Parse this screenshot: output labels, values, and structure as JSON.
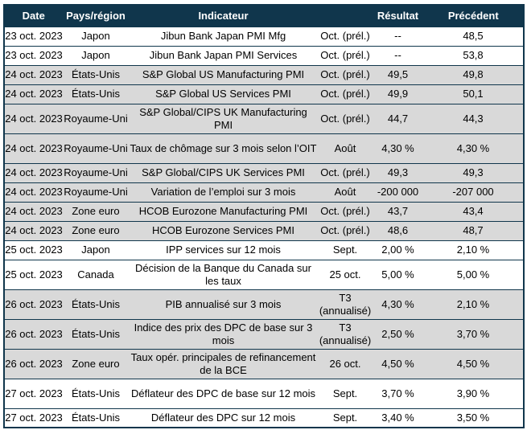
{
  "chart_data": {
    "type": "table",
    "columns": [
      "Date",
      "Pays/région",
      "Indicateur",
      "",
      "Résultat",
      "Précédent"
    ],
    "rows": [
      [
        "23 oct. 2023",
        "Japon",
        "Jibun Bank Japan PMI Mfg",
        "Oct. (prél.)",
        "--",
        "48,5"
      ],
      [
        "23 oct. 2023",
        "Japon",
        "Jibun Bank Japan PMI Services",
        "Oct. (prél.)",
        "--",
        "53,8"
      ],
      [
        "24 oct. 2023",
        "États-Unis",
        "S&P Global US Manufacturing PMI",
        "Oct. (prél.)",
        "49,5",
        "49,8"
      ],
      [
        "24 oct. 2023",
        "États-Unis",
        "S&P Global US Services PMI",
        "Oct. (prél.)",
        "49,9",
        "50,1"
      ],
      [
        "24 oct. 2023",
        "Royaume-Uni",
        "S&P Global/CIPS UK Manufacturing PMI",
        "Oct. (prél.)",
        "44,7",
        "44,3"
      ],
      [
        "24 oct. 2023",
        "Royaume-Uni",
        "Taux de chômage sur 3 mois selon l’OIT",
        "Août",
        "4,30 %",
        "4,30 %"
      ],
      [
        "24 oct. 2023",
        "Royaume-Uni",
        "S&P Global/CIPS UK Services PMI",
        "Oct. (prél.)",
        "49,3",
        "49,3"
      ],
      [
        "24 oct. 2023",
        "Royaume-Uni",
        "Variation de l’emploi sur 3 mois",
        "Août",
        "-200 000",
        "-207 000"
      ],
      [
        "24 oct. 2023",
        "Zone euro",
        "HCOB Eurozone Manufacturing PMI",
        "Oct. (prél.)",
        "43,7",
        "43,4"
      ],
      [
        "24 oct. 2023",
        "Zone euro",
        "HCOB Eurozone Services PMI",
        "Oct. (prél.)",
        "48,6",
        "48,7"
      ],
      [
        "25 oct. 2023",
        "Japon",
        "IPP services sur 12 mois",
        "Sept.",
        "2,00 %",
        "2,10 %"
      ],
      [
        "25 oct. 2023",
        "Canada",
        "Décision de la Banque du Canada sur les taux",
        "25 oct.",
        "5,00 %",
        "5,00 %"
      ],
      [
        "26 oct. 2023",
        "États-Unis",
        "PIB annualisé sur 3 mois",
        "T3 (annualisé)",
        "4,30 %",
        "2,10 %"
      ],
      [
        "26 oct. 2023",
        "États-Unis",
        "Indice des prix des DPC de base sur 3 mois",
        "T3 (annualisé)",
        "2,50 %",
        "3,70 %"
      ],
      [
        "26 oct. 2023",
        "Zone euro",
        "Taux opér. principales de refinancement de la BCE",
        "26 oct.",
        "4,50 %",
        "4,50 %"
      ],
      [
        "27 oct. 2023",
        "États-Unis",
        "Déflateur des DPC de base sur 12 mois",
        "Sept.",
        "3,70 %",
        "3,90 %"
      ],
      [
        "27 oct. 2023",
        "États-Unis",
        "Déflateur des DPC sur 12 mois",
        "Sept.",
        "3,40 %",
        "3,50 %"
      ]
    ]
  },
  "style": {
    "shaded_row_indices": [
      2,
      3,
      4,
      5,
      6,
      7,
      8,
      9,
      12,
      13,
      14
    ],
    "tall_row_indices": [
      4,
      5,
      11,
      12,
      13,
      14,
      15
    ],
    "colors": {
      "header_bg": "#10364C",
      "header_text": "#FFFFFF",
      "row_bg": "#FFFFFF",
      "row_alt_bg": "#D9D9D9",
      "border": "#10364C",
      "text": "#000000"
    }
  }
}
